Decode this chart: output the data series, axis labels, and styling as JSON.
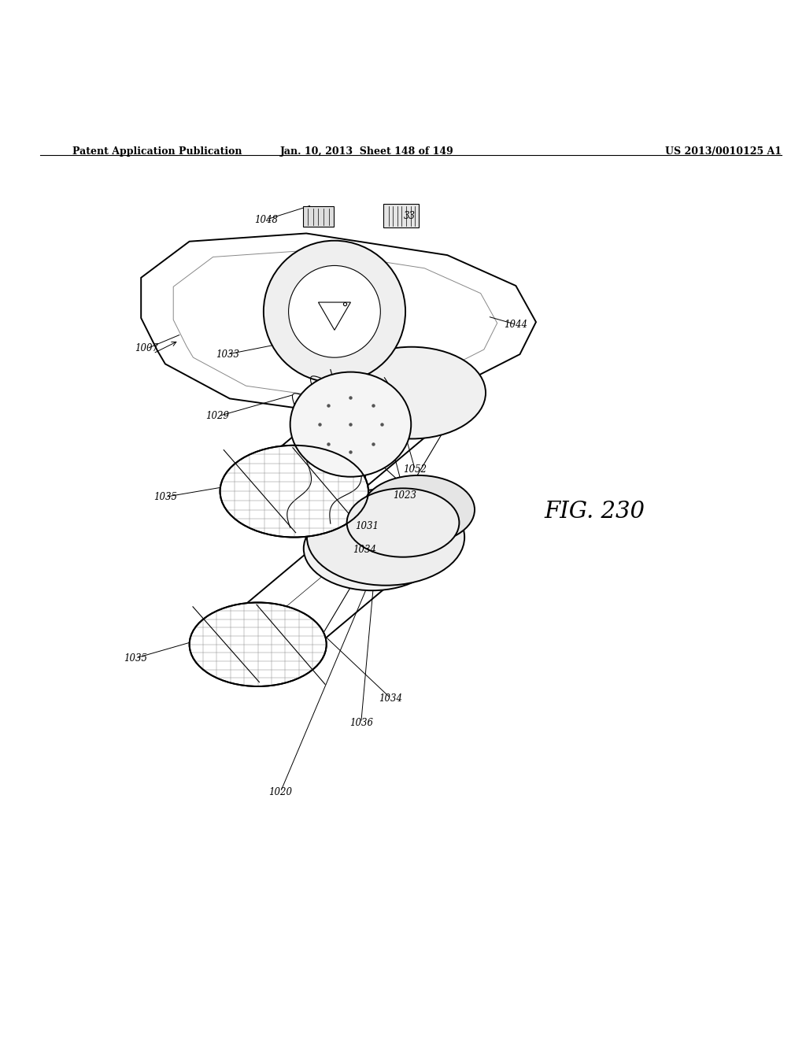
{
  "header_left": "Patent Application Publication",
  "header_middle": "Jan. 10, 2013  Sheet 148 of 149",
  "header_right": "US 2013/0010125 A1",
  "fig_label": "FIG. 230",
  "background_color": "#ffffff",
  "line_color": "#000000"
}
